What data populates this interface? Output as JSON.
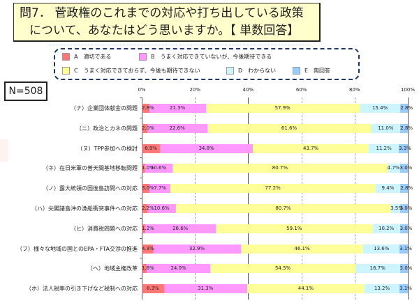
{
  "title": {
    "line1": "問7． 菅政権のこれまでの対応や打ち出している政策",
    "line2": "について、あなたはどう思いますか。【 単数回答】"
  },
  "sample_size": "N=508",
  "legend": [
    {
      "key": "A",
      "label": "適切である",
      "color": "#ff7777"
    },
    {
      "key": "B",
      "label": "うまく対応できていないが、今後期待できる",
      "color": "#ff99ff"
    },
    {
      "key": "C",
      "label": "うまく対応できておらず、今後も期待できない",
      "color": "#ffff99"
    },
    {
      "key": "D",
      "label": "わからない",
      "color": "#ccf5ff"
    },
    {
      "key": "E",
      "label": "無回答",
      "color": "#99ccff"
    }
  ],
  "axis": {
    "ticks": [
      "0%",
      "20%",
      "40%",
      "60%",
      "80%",
      "100%"
    ]
  },
  "chart_data": {
    "type": "bar",
    "stacked": true,
    "orientation": "horizontal",
    "percent": true,
    "title": "問7． 菅政権のこれまでの対応や打ち出している政策について、あなたはどう思いますか。【 単数回答】",
    "subtitle": "N=508",
    "xlabel": "",
    "ylabel": "",
    "xlim": [
      0,
      100
    ],
    "xticks": [
      "0%",
      "20%",
      "40%",
      "60%",
      "80%",
      "100%"
    ],
    "grid": true,
    "legend_position": "top",
    "categories": [
      "（ナ）企業団体献金の問題",
      "（ニ）政治とカネの問題",
      "（ヌ）TPP参加への検討",
      "（ネ）在日米軍の普天間基地移転問題",
      "（ノ）露大統領の国後島訪問への対応",
      "（ハ）尖閣諸島沖の漁船衝突事件への対応",
      "（ヒ）消費税問題への対応",
      "（フ）様々な地域の国とのEPA・FTA交渉の推進",
      "（ヘ）地域主権改革",
      "（ホ）法人税率の引き下げなど税制への対応"
    ],
    "series": [
      {
        "name": "A 適切である",
        "color": "#ff7777",
        "values": [
          2.8,
          2.0,
          6.9,
          1.0,
          3.0,
          2.2,
          1.2,
          4.3,
          1.8,
          8.3
        ]
      },
      {
        "name": "B うまく対応できていないが、今後期待できる",
        "color": "#ff99ff",
        "values": [
          21.3,
          22.6,
          34.8,
          10.6,
          7.7,
          10.6,
          26.6,
          32.9,
          24.0,
          31.3
        ]
      },
      {
        "name": "C うまく対応できておらず、今後も期待できない",
        "color": "#ffff99",
        "values": [
          57.9,
          61.6,
          43.7,
          80.7,
          77.2,
          80.7,
          59.1,
          46.1,
          54.5,
          44.1
        ]
      },
      {
        "name": "D わからない",
        "color": "#ccf5ff",
        "values": [
          15.4,
          11.0,
          11.2,
          4.7,
          9.4,
          3.5,
          10.2,
          13.6,
          16.7,
          13.2
        ]
      },
      {
        "name": "E 無回答",
        "color": "#99ccff",
        "values": [
          2.8,
          2.8,
          3.3,
          3.0,
          2.8,
          3.0,
          3.0,
          3.1,
          3.0,
          3.1
        ]
      }
    ]
  }
}
